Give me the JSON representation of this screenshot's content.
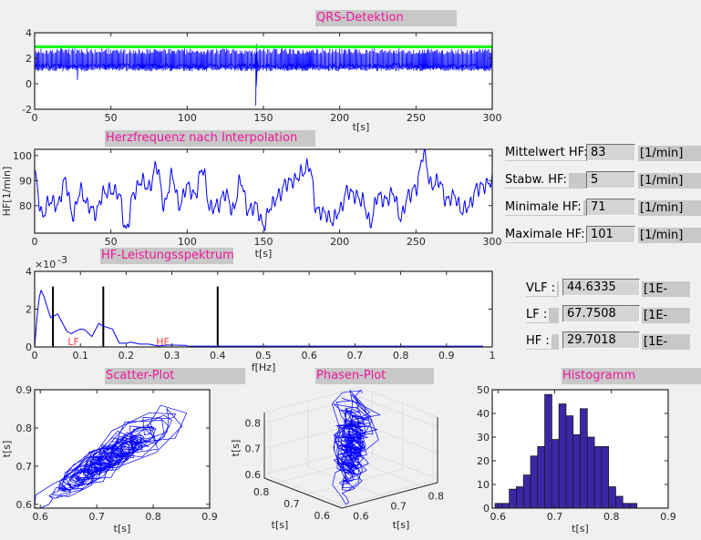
{
  "titles": {
    "qrs": "QRS-Detektion",
    "hr": "Herzfrequenz nach Interpolation",
    "spectrum": "HF-Leistungsspektrum",
    "scatter": "Scatter-Plot",
    "phase": "Phasen-Plot",
    "histogram": "Histogramm"
  },
  "hr_stats": [
    {
      "label": "Mittelwert HF:",
      "value": "83",
      "unit": "[1/min]"
    },
    {
      "label": "Stabw. HF:",
      "value": "5",
      "unit": "[1/min]"
    },
    {
      "label": "Minimale HF:",
      "value": "71",
      "unit": "[1/min]"
    },
    {
      "label": "Maximale HF:",
      "value": "101",
      "unit": "[1/min]"
    }
  ],
  "power_stats": [
    {
      "label": "VLF :",
      "value": "44.6335",
      "unit": "[1E-"
    },
    {
      "label": "LF :",
      "value": "67.7508",
      "unit": "[1E-"
    },
    {
      "label": "HF :",
      "value": "29.7018",
      "unit": "[1E-"
    }
  ],
  "colors": {
    "signal": "#0000ff",
    "threshold": "#00ff00",
    "band_lines": "#000000",
    "band_labels": "#ff4040",
    "histogram_bars": "#3b27a6",
    "title_text": "#f0169a"
  },
  "chart_data": [
    {
      "id": "qrs",
      "type": "line",
      "xlabel": "t[s]",
      "ylabel": "",
      "xlim": [
        0,
        300
      ],
      "ylim": [
        -2,
        4
      ],
      "xticks": [
        "0",
        "50",
        "100",
        "150",
        "200",
        "250",
        "300"
      ],
      "yticks": [
        "-2",
        "0",
        "2",
        "4"
      ],
      "threshold": 2.9,
      "baseline_range": [
        1.2,
        1.6
      ],
      "peak_range": [
        2.3,
        2.75
      ],
      "artifacts": [
        {
          "t": 28,
          "min": 0.3
        },
        {
          "t": 145,
          "min": -1.7,
          "max": 3.1
        }
      ]
    },
    {
      "id": "hr",
      "type": "line",
      "xlabel": "t[s]",
      "ylabel": "HF[1/min]",
      "xlim": [
        0,
        300
      ],
      "ylim": [
        69,
        102.5
      ],
      "xticks": [
        "0",
        "50",
        "100",
        "150",
        "200",
        "250",
        "300"
      ],
      "yticks": [
        "80",
        "90",
        "100"
      ],
      "x": [
        0,
        5,
        10,
        15,
        20,
        25,
        30,
        35,
        40,
        45,
        50,
        55,
        60,
        65,
        70,
        75,
        80,
        85,
        90,
        95,
        100,
        105,
        110,
        115,
        120,
        125,
        130,
        135,
        140,
        145,
        150,
        155,
        160,
        165,
        170,
        175,
        180,
        185,
        190,
        195,
        200,
        205,
        210,
        215,
        220,
        225,
        230,
        235,
        240,
        245,
        250,
        255,
        260,
        265,
        270,
        275,
        280,
        285,
        290,
        295,
        300
      ],
      "y": [
        92,
        76,
        82,
        80,
        90,
        76,
        86,
        80,
        77,
        85,
        86,
        85,
        70,
        85,
        90,
        87,
        96,
        80,
        92,
        80,
        88,
        84,
        95,
        79,
        80,
        85,
        78,
        90,
        78,
        80,
        72,
        80,
        84,
        89,
        90,
        93,
        96,
        78,
        77,
        74,
        78,
        86,
        84,
        82,
        73,
        84,
        82,
        85,
        75,
        84,
        87,
        101,
        88,
        90,
        82,
        84,
        78,
        80,
        87,
        88,
        90
      ]
    },
    {
      "id": "spectrum",
      "type": "line",
      "xlabel": "f[Hz]",
      "ylabel": "",
      "y_multiplier": "×10",
      "y_exponent": "-3",
      "xlim": [
        0,
        1
      ],
      "ylim": [
        0,
        4
      ],
      "xticks": [
        "0",
        "0.1",
        "0.2",
        "0.3",
        "0.4",
        "0.5",
        "0.6",
        "0.7",
        "0.8",
        "0.9",
        "1"
      ],
      "yticks": [
        "0",
        "2",
        "4"
      ],
      "x": [
        0,
        0.005,
        0.01,
        0.014,
        0.02,
        0.03,
        0.035,
        0.04,
        0.05,
        0.06,
        0.07,
        0.08,
        0.09,
        0.1,
        0.11,
        0.125,
        0.14,
        0.15,
        0.17,
        0.185,
        0.2,
        0.21,
        0.23,
        0.25,
        0.27,
        0.29,
        0.33,
        0.34,
        0.98
      ],
      "y": [
        0,
        1.5,
        2.6,
        3.0,
        2.7,
        1.9,
        1.55,
        1.6,
        1.75,
        1.3,
        0.85,
        0.7,
        0.85,
        0.95,
        0.9,
        0.55,
        1.25,
        1.1,
        0.95,
        0.2,
        0.2,
        0.25,
        0.15,
        0.15,
        0.05,
        0.1,
        0.08,
        0.02,
        0.02
      ],
      "band_limits": [
        0.04,
        0.15,
        0.4
      ],
      "band_line_height": 3.2,
      "annotations": [
        {
          "text": "LF",
          "x": 0.085,
          "y": 0.05
        },
        {
          "text": "HF",
          "x": 0.28,
          "y": 0.05
        }
      ]
    },
    {
      "id": "scatter",
      "type": "line",
      "xlabel": "t[s]",
      "ylabel": "t[s]",
      "xlim": [
        0.59,
        0.9
      ],
      "ylim": [
        0.59,
        0.9
      ],
      "xticks": [
        "0.6",
        "0.7",
        "0.8",
        "0.9"
      ],
      "yticks": [
        "0.6",
        "0.7",
        "0.8",
        "0.9"
      ]
    },
    {
      "id": "phase",
      "type": "line",
      "xlabel": "t[s]",
      "ylabel": "t[s]",
      "zlabel": "t[s]",
      "xticks": [
        "0.6",
        "0.7",
        "0.8"
      ],
      "yticks": [
        "0.6",
        "0.7",
        "0.8"
      ],
      "zticks": [
        "0.6",
        "0.7",
        "0.8"
      ],
      "grid": true
    },
    {
      "id": "histogram",
      "type": "bar",
      "xlabel": "t[s]",
      "ylabel": "",
      "xlim": [
        0.59,
        0.9
      ],
      "ylim": [
        0,
        50
      ],
      "xticks": [
        "0.6",
        "0.7",
        "0.8",
        "0.9"
      ],
      "yticks": [
        "0",
        "10",
        "20",
        "30",
        "40",
        "50"
      ],
      "bin_start": 0.595,
      "bin_width": 0.0125,
      "values": [
        2,
        2,
        8,
        9,
        14,
        22,
        26,
        48,
        29,
        44,
        39,
        31,
        42,
        30,
        26,
        26,
        9,
        5,
        2,
        2
      ]
    }
  ]
}
